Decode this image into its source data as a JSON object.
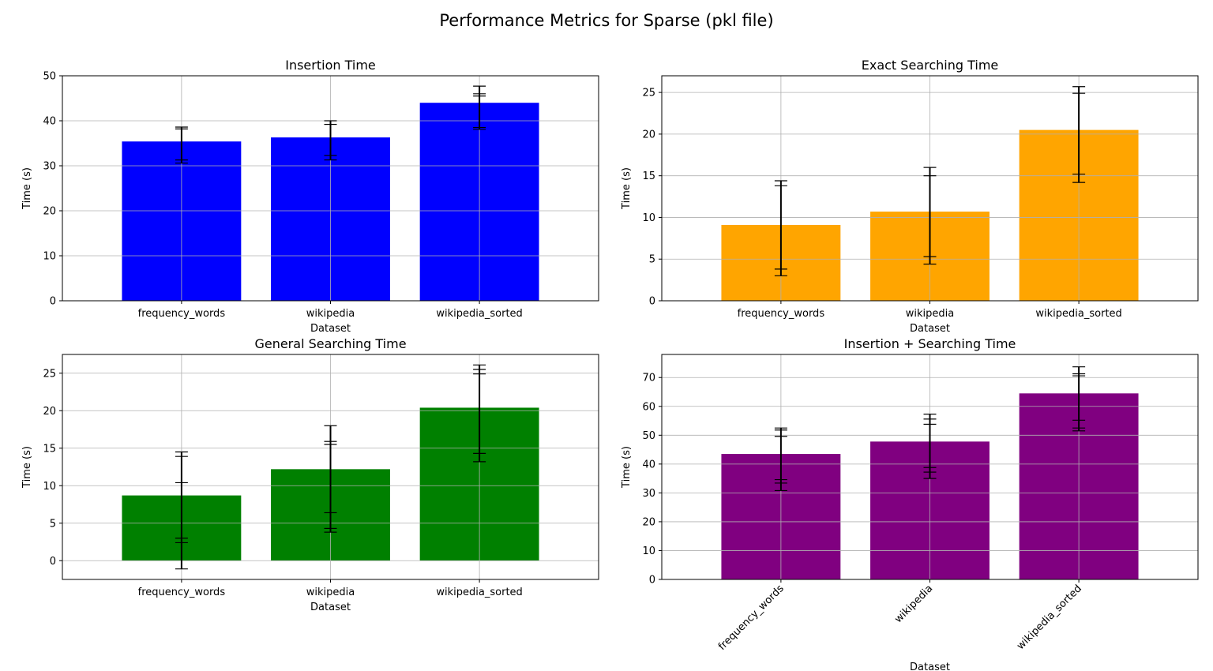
{
  "suptitle": "Performance Metrics for Sparse (pkl file)",
  "chart_data": [
    {
      "type": "bar",
      "title": "Insertion Time",
      "xlabel": "Dataset",
      "ylabel": "Time (s)",
      "categories": [
        "frequency_words",
        "wikipedia",
        "wikipedia_sorted"
      ],
      "values": [
        35.4,
        36.3,
        44.0
      ],
      "error_bars": [
        {
          "lo": 30.6,
          "hi": 38.6,
          "extra": [
            31.3,
            38.2
          ]
        },
        {
          "lo": 31.3,
          "hi": 40.0,
          "extra": [
            32.3,
            39.2
          ]
        },
        {
          "lo": 38.1,
          "hi": 47.7,
          "extra": [
            38.5,
            45.5,
            46.0
          ]
        }
      ],
      "color": "#0000ff",
      "ylim": [
        0,
        50
      ],
      "yticks": [
        0,
        10,
        20,
        30,
        40,
        50
      ],
      "grid": true,
      "xtick_rotation": 0
    },
    {
      "type": "bar",
      "title": "Exact Searching Time",
      "xlabel": "Dataset",
      "ylabel": "Time (s)",
      "categories": [
        "frequency_words",
        "wikipedia",
        "wikipedia_sorted"
      ],
      "values": [
        9.1,
        10.7,
        20.5
      ],
      "error_bars": [
        {
          "lo": 3.0,
          "hi": 14.4,
          "extra": [
            3.8,
            13.8
          ]
        },
        {
          "lo": 4.4,
          "hi": 16.0,
          "extra": [
            5.3,
            15.0
          ]
        },
        {
          "lo": 14.2,
          "hi": 25.7,
          "extra": [
            15.2,
            24.9
          ]
        }
      ],
      "color": "#ffa500",
      "ylim": [
        0,
        27
      ],
      "yticks": [
        0,
        5,
        10,
        15,
        20,
        25
      ],
      "grid": true,
      "xtick_rotation": 0
    },
    {
      "type": "bar",
      "title": "General Searching Time",
      "xlabel": "Dataset",
      "ylabel": "Time (s)",
      "categories": [
        "frequency_words",
        "wikipedia",
        "wikipedia_sorted"
      ],
      "values": [
        8.7,
        12.2,
        20.4
      ],
      "error_bars": [
        {
          "lo": -1.1,
          "hi": 14.5,
          "extra": [
            2.4,
            3.0,
            10.4,
            13.9
          ]
        },
        {
          "lo": 3.8,
          "hi": 18.0,
          "extra": [
            4.3,
            6.4,
            15.5,
            15.9
          ]
        },
        {
          "lo": 13.2,
          "hi": 26.1,
          "extra": [
            14.3,
            24.9,
            25.5
          ]
        }
      ],
      "color": "#008000",
      "ylim": [
        -2.5,
        27.5
      ],
      "yticks": [
        0,
        5,
        10,
        15,
        20,
        25
      ],
      "grid": true,
      "xtick_rotation": 0
    },
    {
      "type": "bar",
      "title": "Insertion + Searching Time",
      "xlabel": "Dataset",
      "ylabel": "Time (s)",
      "categories": [
        "frequency_words",
        "wikipedia",
        "wikipedia_sorted"
      ],
      "values": [
        43.5,
        47.8,
        64.5
      ],
      "error_bars": [
        {
          "lo": 30.8,
          "hi": 52.5,
          "extra": [
            33.4,
            34.6,
            49.6,
            51.8
          ]
        },
        {
          "lo": 35.0,
          "hi": 57.3,
          "extra": [
            37.2,
            38.8,
            53.8,
            55.6
          ]
        },
        {
          "lo": 51.5,
          "hi": 73.7,
          "extra": [
            52.5,
            55.2,
            70.6,
            71.3
          ]
        }
      ],
      "color": "#800080",
      "ylim": [
        0,
        78
      ],
      "yticks": [
        0,
        10,
        20,
        30,
        40,
        50,
        60,
        70
      ],
      "grid": true,
      "xtick_rotation": -45
    }
  ]
}
